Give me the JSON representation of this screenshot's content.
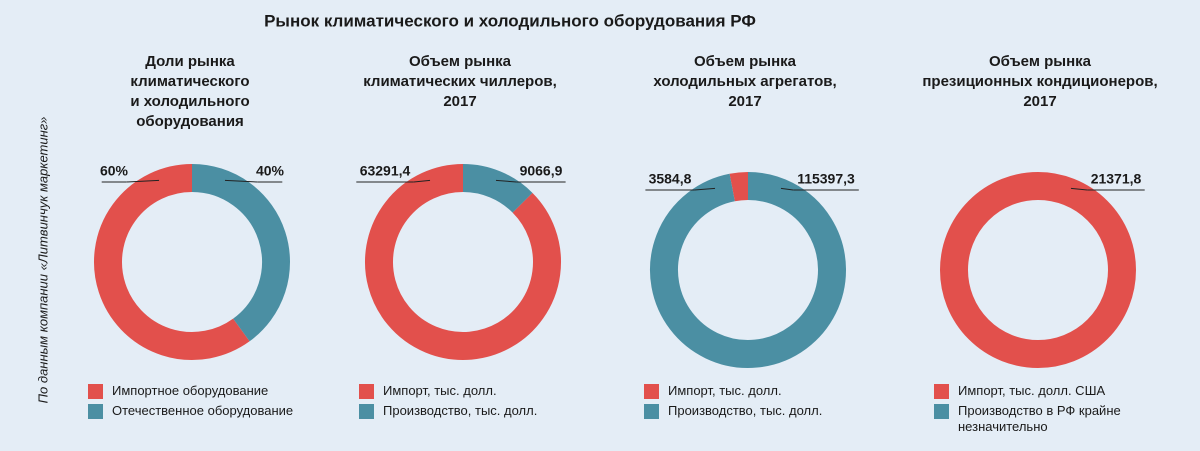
{
  "title": "Рынок климатического и холодильного оборудования РФ",
  "source": "По данным компании «Литвинчук маркетинг»",
  "chart_data": [
    {
      "type": "donut",
      "title": "Доли рынка\nклиматического\nи холодильного\nоборудования",
      "categories": [
        "Импортное оборудование",
        "Отечественное оборудование"
      ],
      "values": [
        60,
        40
      ],
      "value_labels": [
        "60%",
        "40%"
      ],
      "colors": [
        "#e2504c",
        "#4b8fa3"
      ]
    },
    {
      "type": "donut",
      "title": "Объем рынка\nклиматических чиллеров,\n2017",
      "categories": [
        "Импорт, тыс. долл.",
        "Производство, тыс. долл."
      ],
      "values": [
        63291.4,
        9066.9
      ],
      "value_labels": [
        "63291,4",
        "9066,9"
      ],
      "colors": [
        "#e2504c",
        "#4b8fa3"
      ]
    },
    {
      "type": "donut",
      "title": "Объем рынка\nхолодильных агрегатов,\n2017",
      "categories": [
        "Импорт, тыс. долл.",
        "Производство, тыс. долл."
      ],
      "values": [
        3584.8,
        115397.3
      ],
      "value_labels": [
        "3584,8",
        "115397,3"
      ],
      "colors": [
        "#e2504c",
        "#4b8fa3"
      ]
    },
    {
      "type": "donut",
      "title": "Объем рынка\nпрезиционных кондиционеров,\n2017",
      "categories": [
        "Импорт, тыс. долл. США",
        "Производство в РФ крайне\nнезначительно"
      ],
      "values": [
        21371.8,
        null
      ],
      "value_labels": [
        "21371,8",
        null
      ],
      "colors": [
        "#e2504c",
        "#4b8fa3"
      ]
    }
  ]
}
